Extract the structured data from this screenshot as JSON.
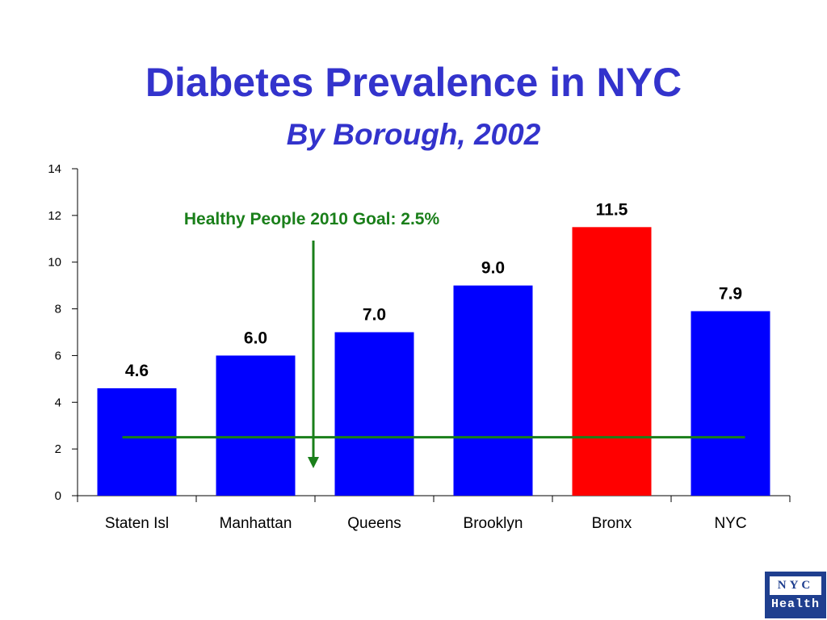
{
  "slide": {
    "title": "Diabetes Prevalence in NYC",
    "subtitle": "By Borough, 2002"
  },
  "chart_data": {
    "type": "bar",
    "categories": [
      "Staten Isl",
      "Manhattan",
      "Queens",
      "Brooklyn",
      "Bronx",
      "NYC"
    ],
    "values": [
      4.6,
      6.0,
      7.0,
      9.0,
      11.5,
      7.9
    ],
    "data_labels": [
      "4.6",
      "6.0",
      "7.0",
      "9.0",
      "11.5",
      "7.9"
    ],
    "bar_colors": [
      "#0000ff",
      "#0000ff",
      "#0000ff",
      "#0000ff",
      "#ff0000",
      "#0000ff"
    ],
    "ylim": [
      0,
      14
    ],
    "yticks": [
      0,
      2,
      4,
      6,
      8,
      10,
      12,
      14
    ],
    "ytick_labels": [
      "0",
      "2",
      "4",
      "6",
      "8",
      "10",
      "12",
      "14"
    ],
    "grid": false,
    "reference_line": {
      "value": 2.5,
      "label": "Healthy People 2010 Goal: 2.5%",
      "color": "#1a7f1a"
    }
  },
  "logo": {
    "line1": "NYC",
    "line2": "Health"
  }
}
